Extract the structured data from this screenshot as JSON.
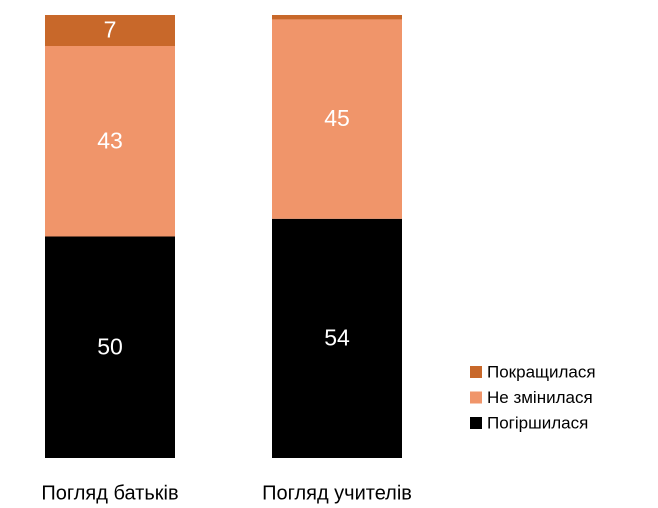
{
  "chart_data": {
    "type": "stacked_bar",
    "categories": [
      "Погляд батьків",
      "Погляд учителів"
    ],
    "series": [
      {
        "name": "Погіршилася",
        "color": "#000000",
        "values": [
          50,
          54
        ]
      },
      {
        "name": "Не змінилася",
        "color": "#f0956a",
        "values": [
          43,
          45
        ]
      },
      {
        "name": "Покращилася",
        "color": "#c8682a",
        "values": [
          7,
          1
        ]
      }
    ],
    "ylim": [
      0,
      100
    ],
    "legend": "right"
  }
}
